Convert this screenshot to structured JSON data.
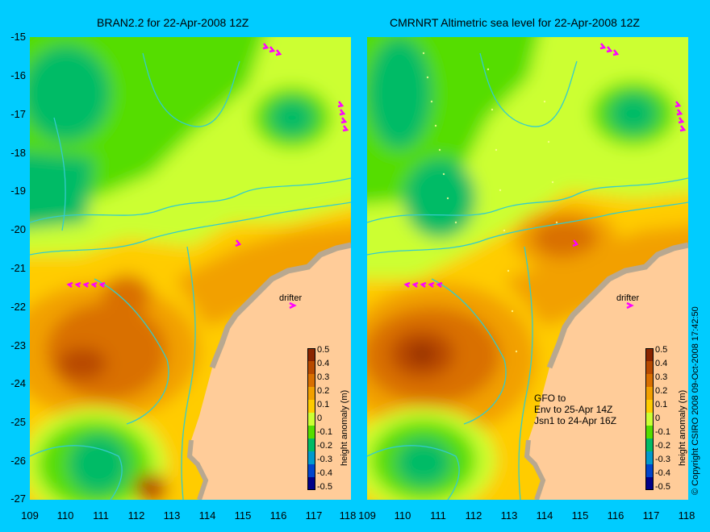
{
  "panels": [
    {
      "title": "BRAN2.2 for 22-Apr-2008 12Z"
    },
    {
      "title": "CMRNRT Altimetric sea level  for 22-Apr-2008 12Z"
    }
  ],
  "y_ticks": [
    "-15",
    "-16",
    "-17",
    "-18",
    "-19",
    "-20",
    "-21",
    "-22",
    "-23",
    "-24",
    "-25",
    "-26",
    "-27"
  ],
  "x_ticks": [
    "109",
    "110",
    "111",
    "112",
    "113",
    "114",
    "115",
    "116",
    "117",
    "118"
  ],
  "colorbar": {
    "title": "height anomaly (m)",
    "ticks": [
      "0.5",
      "0.4",
      "0.3",
      "0.2",
      "0.1",
      "0",
      "-0.1",
      "-0.2",
      "-0.3",
      "-0.4",
      "-0.5"
    ],
    "colors": [
      "#8b2500",
      "#b84a00",
      "#d96f00",
      "#f2a000",
      "#ffcc00",
      "#ccff33",
      "#55dd00",
      "#00bb66",
      "#0099cc",
      "#0044cc",
      "#000088"
    ]
  },
  "drifter_label": "drifter",
  "satellite_note": [
    "GFO to",
    "Env to 25-Apr 14Z",
    "Jsn1 to 24-Apr 16Z"
  ],
  "copyright": "© Copyright CSIRO 2008   09-Oct-2008 17:42:50",
  "colors": {
    "background": "#00ccff",
    "land": "#ffcc99",
    "coastline": "#b8a890",
    "contour_line": "#33cccc",
    "arrow": "#ff00ff"
  },
  "chart_data": {
    "type": "heatmap",
    "xlabel": "",
    "ylabel": "",
    "xlim": [
      109,
      118
    ],
    "ylim": [
      -27,
      -15
    ],
    "colorbar_range": [
      -0.5,
      0.5
    ],
    "features": [
      {
        "panel": "BRAN2.2",
        "type": "cyclonic low",
        "lon": 116.2,
        "lat": -17.0,
        "value": -0.1
      },
      {
        "panel": "BRAN2.2",
        "type": "anticyclonic high",
        "lon": 110.5,
        "lat": -23.5,
        "value": 0.35
      },
      {
        "panel": "BRAN2.2",
        "type": "cyclonic low",
        "lon": 110.9,
        "lat": -26.0,
        "value": -0.2
      },
      {
        "panel": "CMRNRT",
        "type": "cyclonic low",
        "lon": 116.2,
        "lat": -17.0,
        "value": -0.15
      },
      {
        "panel": "CMRNRT",
        "type": "anticyclonic high",
        "lon": 110.6,
        "lat": -23.3,
        "value": 0.45
      },
      {
        "panel": "CMRNRT",
        "type": "cyclonic low",
        "lon": 110.7,
        "lat": -26.2,
        "value": -0.15
      }
    ]
  }
}
